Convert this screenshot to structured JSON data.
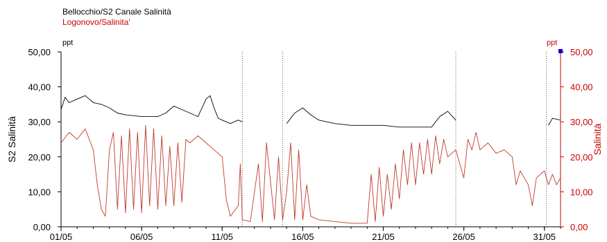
{
  "chart_data": {
    "type": "line",
    "legend": [
      {
        "name": "Bellocchio/S2 Canale Salinità",
        "color": "#000000"
      },
      {
        "name": "Logonovo/Salinita'",
        "color": "#c81e1e"
      }
    ],
    "left_axis": {
      "label": "S2 Salinità",
      "unit": "ppt",
      "ylim": [
        0,
        50
      ],
      "ticks": [
        "0,00",
        "10,00",
        "20,00",
        "30,00",
        "40,00",
        "50,00"
      ],
      "color": "#000000"
    },
    "right_axis": {
      "label": "Salinità",
      "unit": "ppt",
      "ylim": [
        0,
        50
      ],
      "ticks": [
        "0,00",
        "10,00",
        "20,00",
        "30,00",
        "40,00",
        "50,00"
      ],
      "color": "#cc0000"
    },
    "x_axis": {
      "xlim": [
        "2000-05-01",
        "2000-06-01"
      ],
      "tick_labels": [
        {
          "date": "2000-05-01",
          "label": "01/05"
        },
        {
          "date": "2000-05-06",
          "label": "06/05"
        },
        {
          "date": "2000-05-11",
          "label": "11/05"
        },
        {
          "date": "2000-05-16",
          "label": "16/05"
        },
        {
          "date": "2000-05-21",
          "label": "21/05"
        },
        {
          "date": "2000-05-26",
          "label": "26/05"
        },
        {
          "date": "2000-05-31",
          "label": "31/05"
        }
      ]
    },
    "gaps": [
      "2000-05-12T06:00",
      "2000-05-14T18:00",
      "2000-05-25T12:00",
      "2000-05-31T03:00"
    ],
    "grid": false,
    "series": [
      {
        "name": "Bellocchio/S2 Canale Salinità",
        "color": "#000000",
        "axis": "left",
        "points": [
          [
            "2000-05-01T00:00",
            33.5
          ],
          [
            "2000-05-01T06:00",
            37.0
          ],
          [
            "2000-05-01T12:00",
            35.5
          ],
          [
            "2000-05-02T00:00",
            36.5
          ],
          [
            "2000-05-02T12:00",
            37.5
          ],
          [
            "2000-05-03T00:00",
            35.5
          ],
          [
            "2000-05-03T12:00",
            35.0
          ],
          [
            "2000-05-04T00:00",
            34.0
          ],
          [
            "2000-05-04T12:00",
            32.5
          ],
          [
            "2000-05-05T00:00",
            32.0
          ],
          [
            "2000-05-06T00:00",
            31.5
          ],
          [
            "2000-05-07T00:00",
            31.5
          ],
          [
            "2000-05-07T12:00",
            32.5
          ],
          [
            "2000-05-08T00:00",
            34.5
          ],
          [
            "2000-05-08T12:00",
            33.5
          ],
          [
            "2000-05-09T00:00",
            32.5
          ],
          [
            "2000-05-09T12:00",
            31.5
          ],
          [
            "2000-05-10T00:00",
            36.5
          ],
          [
            "2000-05-10T06:00",
            37.5
          ],
          [
            "2000-05-10T12:00",
            34.0
          ],
          [
            "2000-05-10T18:00",
            31.0
          ],
          [
            "2000-05-11T00:00",
            30.5
          ],
          [
            "2000-05-11T12:00",
            29.5
          ],
          [
            "2000-05-12T00:00",
            30.5
          ],
          [
            "2000-05-12T06:00",
            30.0
          ],
          [
            "2000-05-15T00:00",
            29.5
          ],
          [
            "2000-05-15T12:00",
            32.5
          ],
          [
            "2000-05-16T00:00",
            34.0
          ],
          [
            "2000-05-16T12:00",
            32.0
          ],
          [
            "2000-05-17T00:00",
            30.5
          ],
          [
            "2000-05-18T00:00",
            29.5
          ],
          [
            "2000-05-19T00:00",
            29.0
          ],
          [
            "2000-05-20T00:00",
            29.0
          ],
          [
            "2000-05-21T00:00",
            29.0
          ],
          [
            "2000-05-22T00:00",
            28.5
          ],
          [
            "2000-05-23T00:00",
            28.5
          ],
          [
            "2000-05-24T00:00",
            28.5
          ],
          [
            "2000-05-24T12:00",
            31.5
          ],
          [
            "2000-05-25T00:00",
            33.0
          ],
          [
            "2000-05-25T12:00",
            30.5
          ],
          [
            "2000-05-31T06:00",
            29.0
          ],
          [
            "2000-05-31T12:00",
            31.0
          ],
          [
            "2000-06-01T00:00",
            30.5
          ]
        ]
      },
      {
        "name": "Logonovo/Salinita'",
        "color": "#c0392b",
        "axis": "right",
        "points": [
          [
            "2000-05-01T00:00",
            24.0
          ],
          [
            "2000-05-01T12:00",
            27.0
          ],
          [
            "2000-05-02T00:00",
            25.0
          ],
          [
            "2000-05-02T12:00",
            28.0
          ],
          [
            "2000-05-03T00:00",
            22.0
          ],
          [
            "2000-05-03T06:00",
            12.0
          ],
          [
            "2000-05-03T12:00",
            5.0
          ],
          [
            "2000-05-03T18:00",
            3.0
          ],
          [
            "2000-05-04T00:00",
            22.0
          ],
          [
            "2000-05-04T06:00",
            27.0
          ],
          [
            "2000-05-04T12:00",
            5.0
          ],
          [
            "2000-05-04T18:00",
            26.0
          ],
          [
            "2000-05-05T00:00",
            4.0
          ],
          [
            "2000-05-05T06:00",
            28.0
          ],
          [
            "2000-05-05T12:00",
            5.0
          ],
          [
            "2000-05-05T18:00",
            27.0
          ],
          [
            "2000-05-06T00:00",
            4.0
          ],
          [
            "2000-05-06T06:00",
            29.0
          ],
          [
            "2000-05-06T12:00",
            6.0
          ],
          [
            "2000-05-06T18:00",
            28.0
          ],
          [
            "2000-05-07T00:00",
            5.0
          ],
          [
            "2000-05-07T06:00",
            26.0
          ],
          [
            "2000-05-07T12:00",
            6.0
          ],
          [
            "2000-05-07T18:00",
            23.0
          ],
          [
            "2000-05-08T00:00",
            6.0
          ],
          [
            "2000-05-08T06:00",
            24.0
          ],
          [
            "2000-05-08T12:00",
            7.0
          ],
          [
            "2000-05-08T18:00",
            25.0
          ],
          [
            "2000-05-09T00:00",
            24.0
          ],
          [
            "2000-05-09T12:00",
            26.0
          ],
          [
            "2000-05-10T00:00",
            24.0
          ],
          [
            "2000-05-10T12:00",
            22.0
          ],
          [
            "2000-05-11T00:00",
            20.0
          ],
          [
            "2000-05-11T06:00",
            8.0
          ],
          [
            "2000-05-11T12:00",
            3.0
          ],
          [
            "2000-05-12T00:00",
            6.0
          ],
          [
            "2000-05-12T03:00",
            18.0
          ],
          [
            "2000-05-12T06:00",
            2.0
          ],
          [
            "2000-05-12T18:00",
            1.5
          ],
          [
            "2000-05-13T06:00",
            18.0
          ],
          [
            "2000-05-13T12:00",
            1.5
          ],
          [
            "2000-05-13T18:00",
            24.0
          ],
          [
            "2000-05-14T06:00",
            2.0
          ],
          [
            "2000-05-14T12:00",
            20.0
          ],
          [
            "2000-05-14T18:00",
            2.0
          ],
          [
            "2000-05-15T00:00",
            10.0
          ],
          [
            "2000-05-15T06:00",
            24.0
          ],
          [
            "2000-05-15T12:00",
            2.0
          ],
          [
            "2000-05-15T18:00",
            22.0
          ],
          [
            "2000-05-16T00:00",
            2.0
          ],
          [
            "2000-05-16T06:00",
            12.0
          ],
          [
            "2000-05-16T12:00",
            3.0
          ],
          [
            "2000-05-17T00:00",
            2.0
          ],
          [
            "2000-05-18T00:00",
            1.5
          ],
          [
            "2000-05-19T00:00",
            1.0
          ],
          [
            "2000-05-20T00:00",
            1.0
          ],
          [
            "2000-05-20T06:00",
            15.0
          ],
          [
            "2000-05-20T12:00",
            1.5
          ],
          [
            "2000-05-20T18:00",
            17.0
          ],
          [
            "2000-05-21T00:00",
            3.0
          ],
          [
            "2000-05-21T06:00",
            15.0
          ],
          [
            "2000-05-21T12:00",
            5.0
          ],
          [
            "2000-05-21T18:00",
            18.0
          ],
          [
            "2000-05-22T00:00",
            8.0
          ],
          [
            "2000-05-22T06:00",
            22.0
          ],
          [
            "2000-05-22T12:00",
            12.0
          ],
          [
            "2000-05-22T18:00",
            24.0
          ],
          [
            "2000-05-23T00:00",
            12.0
          ],
          [
            "2000-05-23T06:00",
            24.0
          ],
          [
            "2000-05-23T12:00",
            15.0
          ],
          [
            "2000-05-23T18:00",
            25.0
          ],
          [
            "2000-05-24T00:00",
            15.0
          ],
          [
            "2000-05-24T06:00",
            26.0
          ],
          [
            "2000-05-24T12:00",
            18.0
          ],
          [
            "2000-05-24T18:00",
            25.0
          ],
          [
            "2000-05-25T00:00",
            20.0
          ],
          [
            "2000-05-25T12:00",
            22.0
          ],
          [
            "2000-05-26T00:00",
            14.0
          ],
          [
            "2000-05-26T06:00",
            25.0
          ],
          [
            "2000-05-26T12:00",
            22.0
          ],
          [
            "2000-05-26T18:00",
            27.0
          ],
          [
            "2000-05-27T00:00",
            22.0
          ],
          [
            "2000-05-27T12:00",
            24.0
          ],
          [
            "2000-05-28T00:00",
            21.0
          ],
          [
            "2000-05-28T12:00",
            22.0
          ],
          [
            "2000-05-29T00:00",
            20.0
          ],
          [
            "2000-05-29T06:00",
            12.0
          ],
          [
            "2000-05-29T12:00",
            16.0
          ],
          [
            "2000-05-30T00:00",
            12.0
          ],
          [
            "2000-05-30T06:00",
            6.0
          ],
          [
            "2000-05-30T12:00",
            14.0
          ],
          [
            "2000-05-31T00:00",
            16.0
          ],
          [
            "2000-05-31T06:00",
            12.0
          ],
          [
            "2000-05-31T12:00",
            15.0
          ],
          [
            "2000-05-31T18:00",
            12.0
          ],
          [
            "2000-06-01T00:00",
            14.0
          ]
        ]
      }
    ]
  }
}
